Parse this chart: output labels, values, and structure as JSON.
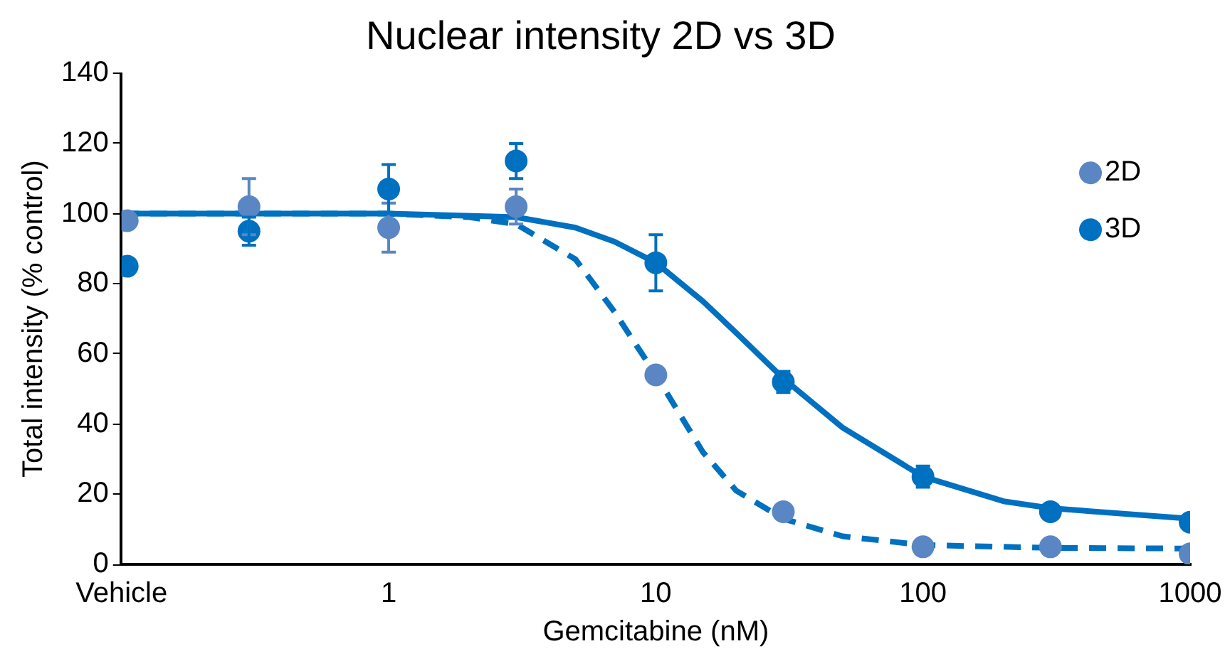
{
  "chart_data": {
    "type": "scatter",
    "title": "Nuclear intensity 2D vs 3D",
    "xlabel": "Gemcitabine (nM)",
    "ylabel": "Total intensity (% control)",
    "log": "x",
    "xlim": [
      0.1,
      1000
    ],
    "xticks": [
      {
        "value": 0.1,
        "label": "Vehicle"
      },
      1,
      10,
      100,
      1000
    ],
    "ylim": [
      0,
      140
    ],
    "yticks": [
      0,
      20,
      40,
      60,
      80,
      100,
      120,
      140
    ],
    "grid": false,
    "legend": "top right",
    "marker": "circle",
    "series": [
      {
        "name": "2D",
        "color": "#5a86c4",
        "x": [
          0.105,
          0.3,
          1,
          3,
          10,
          30,
          100,
          300,
          1000
        ],
        "values": [
          98,
          102,
          96,
          102,
          54,
          15,
          5,
          5,
          3
        ],
        "errors": [
          null,
          8,
          7,
          5,
          null,
          null,
          null,
          null,
          null
        ]
      },
      {
        "name": "3D",
        "color": "#0070c0",
        "x": [
          0.105,
          0.3,
          1,
          3,
          10,
          30,
          100,
          300,
          1000
        ],
        "values": [
          85,
          95,
          107,
          115,
          86,
          52,
          25,
          15,
          12
        ],
        "errors": [
          null,
          4,
          7,
          5,
          8,
          3,
          3,
          null,
          null
        ]
      },
      {
        "type": "line",
        "color": "#0070c0",
        "line_style": "dashed",
        "marker": "none",
        "x": [
          0.1,
          1,
          2,
          3,
          5,
          7,
          10,
          15,
          20,
          30,
          50,
          100,
          300,
          1000
        ],
        "values": [
          100,
          100,
          99,
          97,
          87,
          72,
          54,
          32,
          21,
          13,
          8,
          5.5,
          4.7,
          4.5
        ]
      },
      {
        "type": "line",
        "color": "#0070c0",
        "line_style": "solid",
        "marker": "none",
        "x": [
          0.1,
          1,
          3,
          5,
          7,
          10,
          15,
          20,
          30,
          50,
          100,
          200,
          300,
          1000
        ],
        "values": [
          100,
          100,
          99,
          96,
          92,
          86,
          75,
          66,
          53,
          39,
          25,
          18,
          16,
          13
        ]
      }
    ]
  }
}
